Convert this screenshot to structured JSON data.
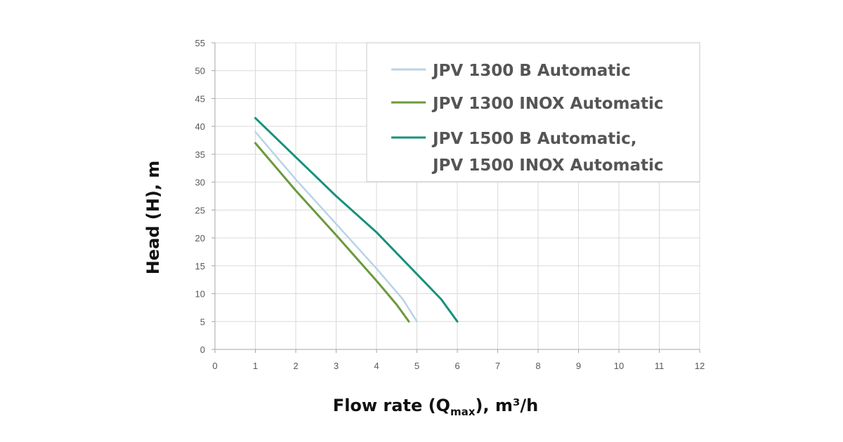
{
  "chart_data": {
    "type": "line",
    "xlabel": "Flow rate (Q",
    "xlabel_sub": "max",
    "xlabel_tail": "), m³/h",
    "ylabel": "Head (H), m",
    "xlim": [
      0,
      12
    ],
    "ylim": [
      0,
      55
    ],
    "x_ticks": [
      "0",
      "1",
      "2",
      "3",
      "4",
      "5",
      "6",
      "7",
      "8",
      "9",
      "10",
      "11",
      "12"
    ],
    "y_ticks": [
      "0",
      "5",
      "10",
      "15",
      "20",
      "25",
      "30",
      "35",
      "40",
      "45",
      "50",
      "55"
    ],
    "grid": true,
    "legend_position": "top-right",
    "series": [
      {
        "name": "JPV 1300 B Automatic",
        "name_lines": [
          "JPV 1300 B Automatic"
        ],
        "color": "#b8d3e6",
        "points": [
          [
            1,
            39
          ],
          [
            2,
            30.5
          ],
          [
            3,
            22.5
          ],
          [
            4,
            14.5
          ],
          [
            4.65,
            9
          ],
          [
            5,
            5
          ]
        ]
      },
      {
        "name": "JPV 1300 INOX Automatic",
        "name_lines": [
          "JPV 1300 INOX Automatic"
        ],
        "color": "#6a9a3c",
        "points": [
          [
            1,
            37
          ],
          [
            2,
            28.5
          ],
          [
            3,
            20.5
          ],
          [
            4,
            12.3
          ],
          [
            4.5,
            8
          ],
          [
            4.8,
            5
          ]
        ]
      },
      {
        "name": "JPV 1500 B Automatic, JPV 1500 INOX Automatic",
        "name_lines": [
          "JPV 1500 B Automatic,",
          "JPV 1500 INOX Automatic"
        ],
        "color": "#17927a",
        "points": [
          [
            1,
            41.5
          ],
          [
            2,
            34.5
          ],
          [
            3,
            27.5
          ],
          [
            4,
            21
          ],
          [
            5,
            13.5
          ],
          [
            5.6,
            9
          ],
          [
            6,
            5
          ]
        ]
      }
    ]
  }
}
